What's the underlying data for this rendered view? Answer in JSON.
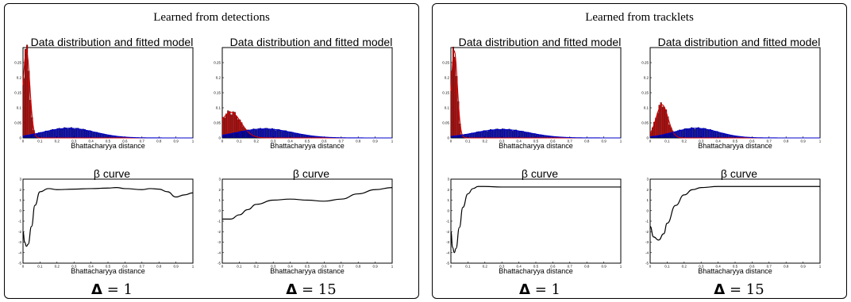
{
  "panels": [
    {
      "title": "Learned from detections",
      "columns": [
        {
          "hist_title": "Data distribution and fitted model",
          "beta_title": "β curve",
          "delta_label": "= 1",
          "delta_symbol": "Δ"
        },
        {
          "hist_title": "Data distribution and fitted model",
          "beta_title": "β curve",
          "delta_label": "= 15",
          "delta_symbol": "Δ"
        }
      ]
    },
    {
      "title": "Learned from tracklets",
      "columns": [
        {
          "hist_title": "Data distribution and fitted model",
          "beta_title": "β curve",
          "delta_label": "= 1",
          "delta_symbol": "Δ"
        },
        {
          "hist_title": "Data distribution and fitted model",
          "beta_title": "β curve",
          "delta_label": "= 15",
          "delta_symbol": "Δ"
        }
      ]
    }
  ],
  "chart_data": [
    {
      "type": "bar",
      "panel": "Learned from detections",
      "subplot": "Data distribution and fitted model",
      "delta": 1,
      "xlabel": "Bhattacharyya distance",
      "xlim": [
        0,
        1
      ],
      "ylim": [
        0,
        0.3
      ],
      "xticks": [
        "0",
        "0.1",
        "0.2",
        "0.3",
        "0.4",
        "0.5",
        "0.6",
        "0.7",
        "0.8",
        "0.9",
        "1"
      ],
      "yticks": [
        "0",
        "0.05",
        "0.1",
        "0.15",
        "0.2",
        "0.25"
      ],
      "series": [
        {
          "color": "#cc0000",
          "kind": "histogram+fit",
          "peak_x": 0.02,
          "peak_y": 0.29,
          "width": 0.02
        },
        {
          "color": "#0000cc",
          "kind": "histogram+fit",
          "peak_x": 0.27,
          "peak_y": 0.032,
          "width": 0.15
        }
      ]
    },
    {
      "type": "bar",
      "panel": "Learned from detections",
      "subplot": "Data distribution and fitted model",
      "delta": 15,
      "xlabel": "Bhattacharyya distance",
      "xlim": [
        0,
        1
      ],
      "ylim": [
        0,
        0.3
      ],
      "xticks": [
        "0",
        "0.1",
        "0.2",
        "0.3",
        "0.4",
        "0.5",
        "0.6",
        "0.7",
        "0.8",
        "0.9",
        "1"
      ],
      "yticks": [
        "0",
        "0.05",
        "0.1",
        "0.15",
        "0.2",
        "0.25"
      ],
      "series": [
        {
          "color": "#cc0000",
          "kind": "histogram+fit",
          "peak_x": 0.05,
          "peak_y": 0.085,
          "width": 0.06
        },
        {
          "color": "#0000cc",
          "kind": "histogram+fit",
          "peak_x": 0.25,
          "peak_y": 0.03,
          "width": 0.16
        }
      ]
    },
    {
      "type": "bar",
      "panel": "Learned from tracklets",
      "subplot": "Data distribution and fitted model",
      "delta": 1,
      "xlabel": "Bhattacharyya distance",
      "xlim": [
        0,
        1
      ],
      "ylim": [
        0,
        0.3
      ],
      "xticks": [
        "0",
        "0.1",
        "0.2",
        "0.3",
        "0.4",
        "0.5",
        "0.6",
        "0.7",
        "0.8",
        "0.9",
        "1"
      ],
      "yticks": [
        "0",
        "0.05",
        "0.1",
        "0.15",
        "0.2",
        "0.25"
      ],
      "series": [
        {
          "color": "#cc0000",
          "kind": "histogram+fit",
          "peak_x": 0.02,
          "peak_y": 0.29,
          "width": 0.018
        },
        {
          "color": "#0000cc",
          "kind": "histogram+fit",
          "peak_x": 0.3,
          "peak_y": 0.028,
          "width": 0.16
        }
      ]
    },
    {
      "type": "bar",
      "panel": "Learned from tracklets",
      "subplot": "Data distribution and fitted model",
      "delta": 15,
      "xlabel": "Bhattacharyya distance",
      "xlim": [
        0,
        1
      ],
      "ylim": [
        0,
        0.3
      ],
      "xticks": [
        "0",
        "0.1",
        "0.2",
        "0.3",
        "0.4",
        "0.5",
        "0.6",
        "0.7",
        "0.8",
        "0.9",
        "1"
      ],
      "yticks": [
        "0",
        "0.05",
        "0.1",
        "0.15",
        "0.2",
        "0.25"
      ],
      "series": [
        {
          "color": "#cc0000",
          "kind": "histogram+fit",
          "peak_x": 0.07,
          "peak_y": 0.11,
          "width": 0.035
        },
        {
          "color": "#0000cc",
          "kind": "histogram+fit",
          "peak_x": 0.27,
          "peak_y": 0.032,
          "width": 0.13
        }
      ]
    },
    {
      "type": "line",
      "panel": "Learned from detections",
      "subplot": "β curve",
      "delta": 1,
      "xlabel": "Bhattacharyya distance",
      "xlim": [
        0,
        1
      ],
      "ylim": [
        -5,
        3
      ],
      "xticks": [
        "0",
        "0.1",
        "0.2",
        "0.3",
        "0.4",
        "0.5",
        "0.6",
        "0.7",
        "0.8",
        "0.9",
        "1"
      ],
      "yticks": [
        "-5",
        "-4",
        "-3",
        "-2",
        "-1",
        "0",
        "1",
        "2",
        "3"
      ],
      "x": [
        0,
        0.01,
        0.02,
        0.03,
        0.05,
        0.07,
        0.1,
        0.15,
        0.2,
        0.3,
        0.4,
        0.5,
        0.55,
        0.6,
        0.7,
        0.75,
        0.8,
        0.85,
        0.9,
        0.95,
        1.0
      ],
      "y": [
        -2.0,
        -3.0,
        -3.4,
        -3.2,
        -1.5,
        0.5,
        1.8,
        2.1,
        2.0,
        2.05,
        2.1,
        2.15,
        2.2,
        2.1,
        2.0,
        2.1,
        2.05,
        1.8,
        1.3,
        1.5,
        1.7
      ]
    },
    {
      "type": "line",
      "panel": "Learned from detections",
      "subplot": "β curve",
      "delta": 15,
      "xlabel": "Bhattacharyya distance",
      "xlim": [
        0,
        1
      ],
      "ylim": [
        -5,
        3
      ],
      "xticks": [
        "0",
        "0.1",
        "0.2",
        "0.3",
        "0.4",
        "0.5",
        "0.6",
        "0.7",
        "0.8",
        "0.9",
        "1"
      ],
      "yticks": [
        "-5",
        "-4",
        "-3",
        "-2",
        "-1",
        "0",
        "1",
        "2",
        "3"
      ],
      "x": [
        0,
        0.05,
        0.1,
        0.15,
        0.2,
        0.3,
        0.4,
        0.5,
        0.6,
        0.7,
        0.8,
        0.9,
        1.0
      ],
      "y": [
        -0.8,
        -0.8,
        -0.4,
        0.1,
        0.6,
        1.0,
        1.1,
        1.0,
        0.9,
        1.1,
        1.6,
        2.0,
        2.2
      ]
    },
    {
      "type": "line",
      "panel": "Learned from tracklets",
      "subplot": "β curve",
      "delta": 1,
      "xlabel": "Bhattacharyya distance",
      "xlim": [
        0,
        1
      ],
      "ylim": [
        -5,
        3
      ],
      "xticks": [
        "0",
        "0.1",
        "0.2",
        "0.3",
        "0.4",
        "0.5",
        "0.6",
        "0.7",
        "0.8",
        "0.9",
        "1"
      ],
      "yticks": [
        "-5",
        "-4",
        "-3",
        "-2",
        "-1",
        "0",
        "1",
        "2",
        "3"
      ],
      "x": [
        0,
        0.01,
        0.02,
        0.03,
        0.05,
        0.07,
        0.1,
        0.13,
        0.16,
        0.2,
        0.3,
        0.5,
        0.7,
        0.9,
        1.0
      ],
      "y": [
        -2.0,
        -3.5,
        -4.0,
        -3.6,
        -1.6,
        0.3,
        1.6,
        2.1,
        2.3,
        2.3,
        2.25,
        2.25,
        2.25,
        2.25,
        2.25
      ]
    },
    {
      "type": "line",
      "panel": "Learned from tracklets",
      "subplot": "β curve",
      "delta": 15,
      "xlabel": "Bhattacharyya distance",
      "xlim": [
        0,
        1
      ],
      "ylim": [
        -5,
        3
      ],
      "xticks": [
        "0",
        "0.1",
        "0.2",
        "0.3",
        "0.4",
        "0.5",
        "0.6",
        "0.7",
        "0.8",
        "0.9",
        "1"
      ],
      "yticks": [
        "-5",
        "-4",
        "-3",
        "-2",
        "-1",
        "0",
        "1",
        "2",
        "3"
      ],
      "x": [
        0,
        0.02,
        0.05,
        0.08,
        0.1,
        0.15,
        0.2,
        0.25,
        0.3,
        0.4,
        0.5,
        0.7,
        1.0
      ],
      "y": [
        -1.5,
        -2.5,
        -2.8,
        -2.2,
        -1.2,
        0.5,
        1.5,
        2.0,
        2.2,
        2.3,
        2.3,
        2.3,
        2.3
      ]
    }
  ]
}
